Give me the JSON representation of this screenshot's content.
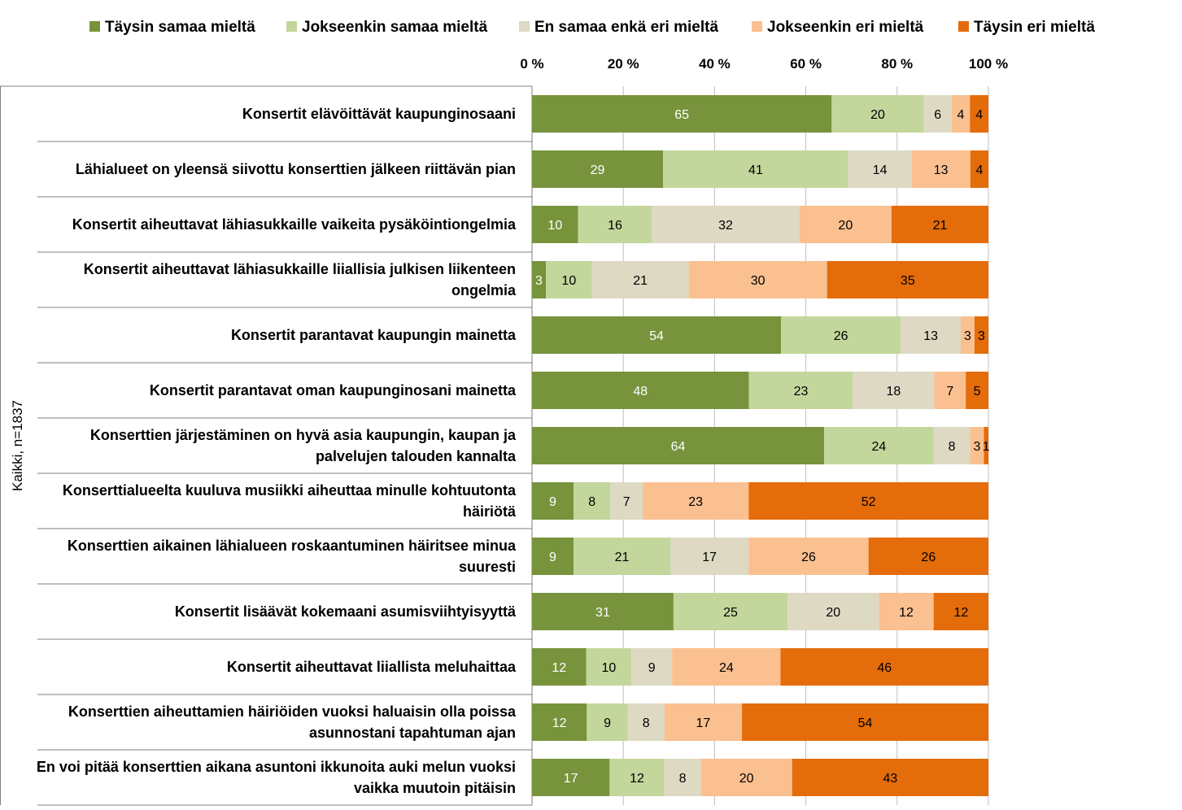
{
  "chart_data": {
    "type": "bar",
    "orientation": "horizontal",
    "stacked": true,
    "stack_mode": "percent",
    "group_label": "Kaikki, n=1837",
    "xlim": [
      0,
      100
    ],
    "xticks": [
      "0 %",
      "20 %",
      "40 %",
      "60 %",
      "80 %",
      "100 %"
    ],
    "grid": true,
    "legend_position": "top",
    "categories": [
      "Konsertit elävöittävät kaupunginosaani",
      "Lähialueet on yleensä siivottu konserttien jälkeen riittävän pian",
      "Konsertit aiheuttavat lähiasukkaille vaikeita pysäköintiongelmia",
      "Konsertit aiheuttavat lähiasukkaille liiallisia julkisen liikenteen ongelmia",
      "Konsertit parantavat kaupungin mainetta",
      "Konsertit parantavat oman kaupunginosani mainetta",
      "Konserttien järjestäminen on hyvä asia kaupungin, kaupan ja palvelujen talouden kannalta",
      "Konserttialueelta kuuluva musiikki aiheuttaa minulle kohtuutonta häiriötä",
      "Konserttien aikainen lähialueen roskaantuminen häiritsee minua suuresti",
      "Konsertit lisäävät kokemaani asumisviihtyisyyttä",
      "Konsertit aiheuttavat liiallista meluhaittaa",
      "Konserttien aiheuttamien häiriöiden vuoksi haluaisin olla poissa asunnostani tapahtuman ajan",
      "En voi pitää konserttien aikana asuntoni ikkunoita auki melun vuoksi vaikka muutoin pitäisin"
    ],
    "series": [
      {
        "name": "Täysin samaa mieltä",
        "color": "#77933c",
        "label_color": "#ffffff",
        "values": [
          65,
          29,
          10,
          3,
          54,
          48,
          64,
          9,
          9,
          31,
          12,
          12,
          17
        ]
      },
      {
        "name": "Jokseenkin samaa mieltä",
        "color": "#c3d69b",
        "label_color": "#000000",
        "values": [
          20,
          41,
          16,
          10,
          26,
          23,
          24,
          8,
          21,
          25,
          10,
          9,
          12
        ]
      },
      {
        "name": "En samaa enkä eri mieltä",
        "color": "#ddd9c3",
        "label_color": "#000000",
        "values": [
          6,
          14,
          32,
          21,
          13,
          18,
          8,
          7,
          17,
          20,
          9,
          8,
          8
        ]
      },
      {
        "name": "Jokseenkin eri mieltä",
        "color": "#fac090",
        "label_color": "#000000",
        "values": [
          4,
          13,
          20,
          30,
          3,
          7,
          3,
          23,
          26,
          12,
          24,
          17,
          20
        ]
      },
      {
        "name": "Täysin eri mieltä",
        "color": "#e46c0a",
        "label_color": "#000000",
        "values": [
          4,
          4,
          21,
          35,
          3,
          5,
          1,
          52,
          26,
          12,
          46,
          54,
          43
        ]
      }
    ]
  }
}
